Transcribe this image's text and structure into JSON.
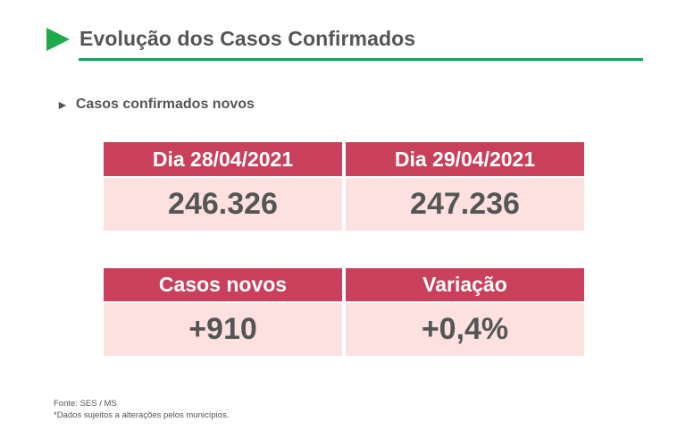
{
  "header": {
    "title": "Evolução dos Casos Confirmados",
    "accent_color": "#1faa4b",
    "arrow_icon": "play-triangle-icon"
  },
  "section": {
    "subtitle": "Casos confirmados novos",
    "bullet_icon": "small-triangle-icon"
  },
  "cards": [
    {
      "label": "Dia 28/04/2021",
      "value": "246.326"
    },
    {
      "label": "Dia 29/04/2021",
      "value": "247.236"
    },
    {
      "label": "Casos novos",
      "value": "+910"
    },
    {
      "label": "Variação",
      "value": "+0,4%"
    }
  ],
  "colors": {
    "card_header": "#c8405a",
    "card_body": "#fde1e1"
  },
  "footer": {
    "source": "Fonte: SES / MS",
    "note": "*Dados sujeitos a alterações pelos municípios."
  }
}
